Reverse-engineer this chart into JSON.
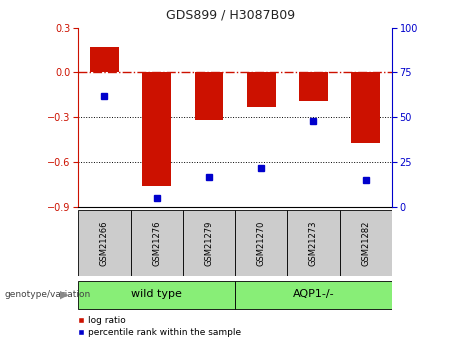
{
  "title": "GDS899 / H3087B09",
  "samples": [
    "GSM21266",
    "GSM21276",
    "GSM21279",
    "GSM21270",
    "GSM21273",
    "GSM21282"
  ],
  "log_ratio": [
    0.17,
    -0.76,
    -0.32,
    -0.23,
    -0.19,
    -0.47
  ],
  "percentile_rank": [
    62,
    5,
    17,
    22,
    48,
    15
  ],
  "ylim_left": [
    -0.9,
    0.3
  ],
  "ylim_right": [
    0,
    100
  ],
  "yticks_left": [
    -0.9,
    -0.6,
    -0.3,
    0.0,
    0.3
  ],
  "yticks_right": [
    0,
    25,
    50,
    75,
    100
  ],
  "bar_color": "#cc1100",
  "dot_color": "#0000cc",
  "dashed_line_color": "#cc1100",
  "dotted_line_color": "#000000",
  "group_color": "#88ee77",
  "sample_box_color": "#cccccc",
  "genotype_label": "genotype/variation",
  "groups": [
    {
      "label": "wild type",
      "start": 0,
      "end": 2
    },
    {
      "label": "AQP1-/-",
      "start": 3,
      "end": 5
    }
  ],
  "legend_items": [
    {
      "label": "log ratio",
      "color": "#cc1100"
    },
    {
      "label": "percentile rank within the sample",
      "color": "#0000cc"
    }
  ]
}
